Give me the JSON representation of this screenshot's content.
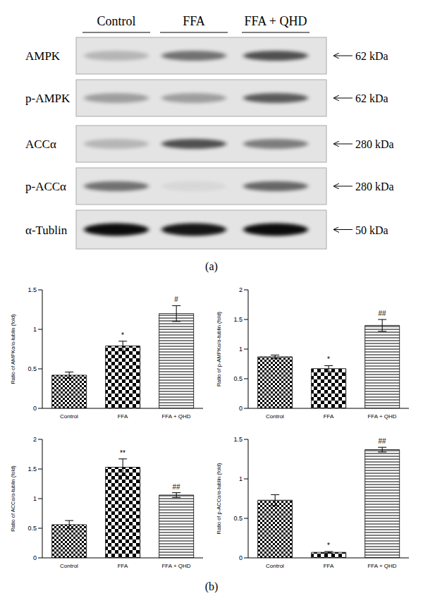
{
  "panel_labels": [
    "(a)",
    "(b)"
  ],
  "blot": {
    "columns": [
      "Control",
      "FFA",
      "FFA + QHD"
    ],
    "rows": [
      {
        "label": "AMPK",
        "size": "62 kDa",
        "intensity": [
          0.2,
          0.5,
          0.65
        ]
      },
      {
        "label": "p-AMPK",
        "size": "62 kDa",
        "intensity": [
          0.3,
          0.3,
          0.6
        ]
      },
      {
        "label": "ACCα",
        "size": "280 kDa",
        "intensity": [
          0.2,
          0.65,
          0.45
        ]
      },
      {
        "label": "p-ACCα",
        "size": "280 kDa",
        "intensity": [
          0.5,
          0.05,
          0.55
        ]
      },
      {
        "label": "α-Tublin",
        "size": "50 kDa",
        "intensity": [
          0.95,
          0.9,
          0.95
        ]
      }
    ]
  },
  "chart_data": [
    {
      "type": "bar",
      "y_label": "Ratio of AMPKα/α-tublin (fold)",
      "categories": [
        "Control",
        "FFA",
        "FFA + QHD"
      ],
      "values": [
        0.42,
        0.79,
        1.2
      ],
      "errors": [
        0.04,
        0.06,
        0.1
      ],
      "annotations": [
        null,
        "*",
        "#"
      ],
      "ylim": [
        0,
        1.5
      ],
      "yticks": [
        0,
        0.5,
        1,
        1.5
      ],
      "color": "#000000"
    },
    {
      "type": "bar",
      "y_label": "Ratio of p-AMPKα/α-tublin (fold)",
      "categories": [
        "Control",
        "FFA",
        "FFA + QHD"
      ],
      "values": [
        0.87,
        0.67,
        1.4
      ],
      "errors": [
        0.03,
        0.05,
        0.1
      ],
      "annotations": [
        null,
        "*",
        "##"
      ],
      "ylim": [
        0,
        2
      ],
      "yticks": [
        0,
        0.5,
        1,
        1.5,
        2
      ],
      "color": "#000000"
    },
    {
      "type": "bar",
      "y_label": "Ratio of ACCα/α-tublin (fold)",
      "categories": [
        "Control",
        "FFA",
        "FFA + QHD"
      ],
      "values": [
        0.56,
        1.53,
        1.06
      ],
      "errors": [
        0.07,
        0.14,
        0.04
      ],
      "annotations": [
        null,
        "**",
        "##"
      ],
      "ylim": [
        0,
        2
      ],
      "yticks": [
        0,
        0.5,
        1,
        1.5,
        2
      ],
      "color": "#000000"
    },
    {
      "type": "bar",
      "y_label": "Ratio of p-ACCα/α-tublin (fold)",
      "categories": [
        "Control",
        "FFA",
        "FFA + QHD"
      ],
      "values": [
        0.73,
        0.07,
        1.37
      ],
      "errors": [
        0.07,
        0.01,
        0.03
      ],
      "annotations": [
        null,
        "*",
        "##"
      ],
      "ylim": [
        0,
        1.5
      ],
      "yticks": [
        0,
        0.5,
        1,
        1.5
      ],
      "color": "#000000"
    }
  ]
}
